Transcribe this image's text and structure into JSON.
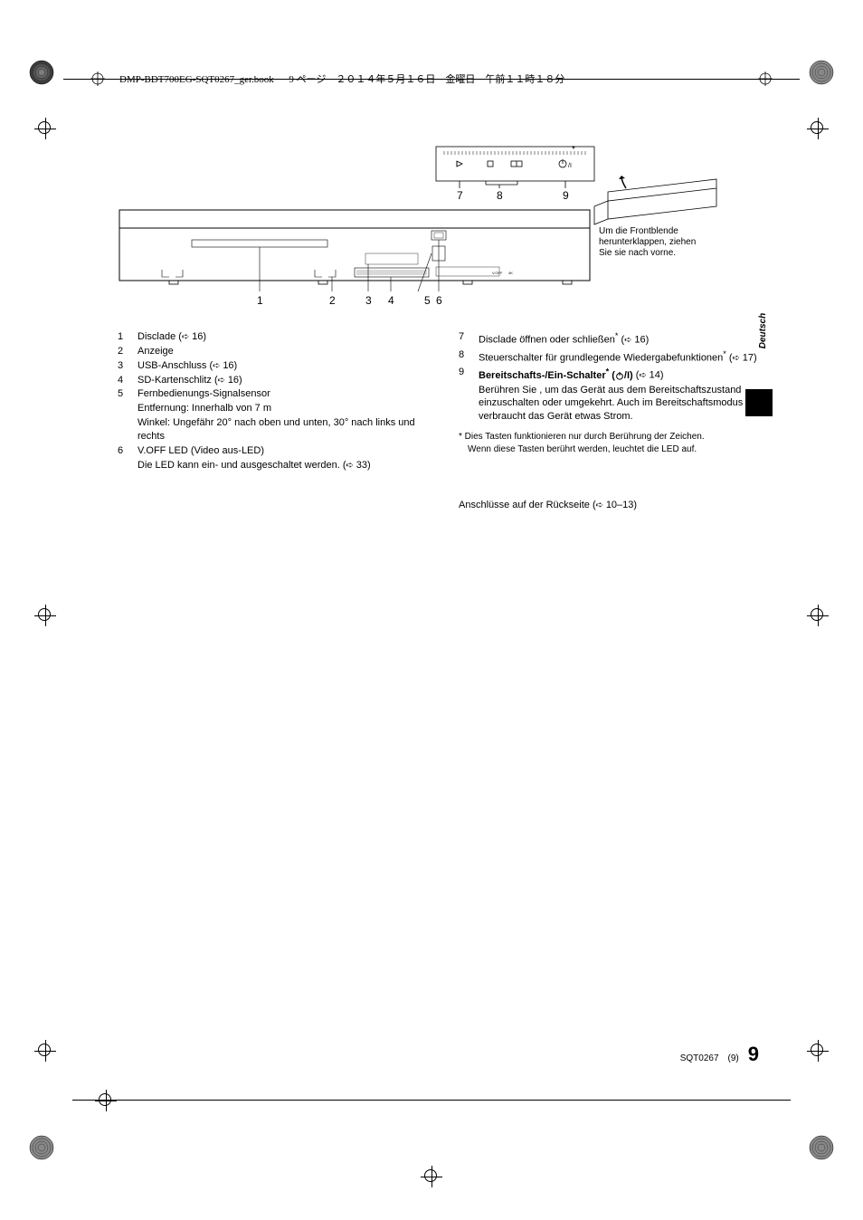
{
  "header": {
    "filename": "DMP-BDT700EG-SQT0267_ger.book",
    "page_info": "9 ページ　２０１４年５月１６日　金曜日　午前１１時１８分"
  },
  "diagram": {
    "callout_text": "Um die Frontblende herunterklappen, ziehen Sie sie nach vorne.",
    "labels_bottom": [
      "1",
      "2",
      "3",
      "4",
      "5",
      "6"
    ],
    "labels_top": [
      "7",
      "8",
      "9"
    ],
    "asterisk": "*"
  },
  "left_items": [
    {
      "num": "1",
      "text": "Disclade (",
      "ref": "16",
      "suffix": ")"
    },
    {
      "num": "2",
      "text": "Anzeige"
    },
    {
      "num": "3",
      "text": "USB-Anschluss (",
      "ref": "16",
      "suffix": ")"
    },
    {
      "num": "4",
      "text": "SD-Kartenschlitz (",
      "ref": "16",
      "suffix": ")"
    },
    {
      "num": "5",
      "text": "Fernbedienungs-Signalsensor"
    },
    {
      "indent": true,
      "text": "Entfernung: Innerhalb von 7 m"
    },
    {
      "indent": true,
      "text": "Winkel: Ungefähr 20° nach oben und unten, 30° nach links und rechts"
    },
    {
      "num": "6",
      "text": "V.OFF LED (Video aus-LED)"
    },
    {
      "indent": true,
      "text": "Die LED kann ein- und ausgeschaltet werden. (",
      "ref": "33",
      "suffix": ")"
    }
  ],
  "right_items": [
    {
      "num": "7",
      "text": "Disclade öffnen oder schließen",
      "sup": "*",
      "suffix2": " (",
      "ref": "16",
      "suffix": ")"
    },
    {
      "num": "8",
      "text": "Steuerschalter für grundlegende Wiedergabefunktionen",
      "sup": "*",
      "suffix2": " (",
      "ref": "17",
      "suffix": ")"
    },
    {
      "num": "9",
      "bold_text": "Bereitschafts-/Ein-Schalter",
      "sup": "*",
      "bold_suffix": " (",
      "power_icon": true,
      "bold_suffix2": "/I)",
      "suffix2": " (",
      "ref": "14",
      "suffix": ")"
    },
    {
      "indent": true,
      "text": "Berühren Sie , um das Gerät aus dem Bereitschaftszustand einzuschalten oder umgekehrt. Auch im Bereitschaftsmodus verbraucht das Gerät etwas Strom."
    }
  ],
  "footnote": {
    "marker": "*",
    "line1": "Dies Tasten funktionieren nur durch Berührung der Zeichen.",
    "line2": "Wenn diese Tasten berührt werden, leuchtet die LED auf."
  },
  "back_note": {
    "text": "Anschlüsse auf der Rückseite (",
    "ref": "10–13",
    "suffix": ")"
  },
  "side_tab": "Deutsch",
  "footer": {
    "doc_id": "SQT0267",
    "seq": "(9)",
    "page": "9"
  }
}
